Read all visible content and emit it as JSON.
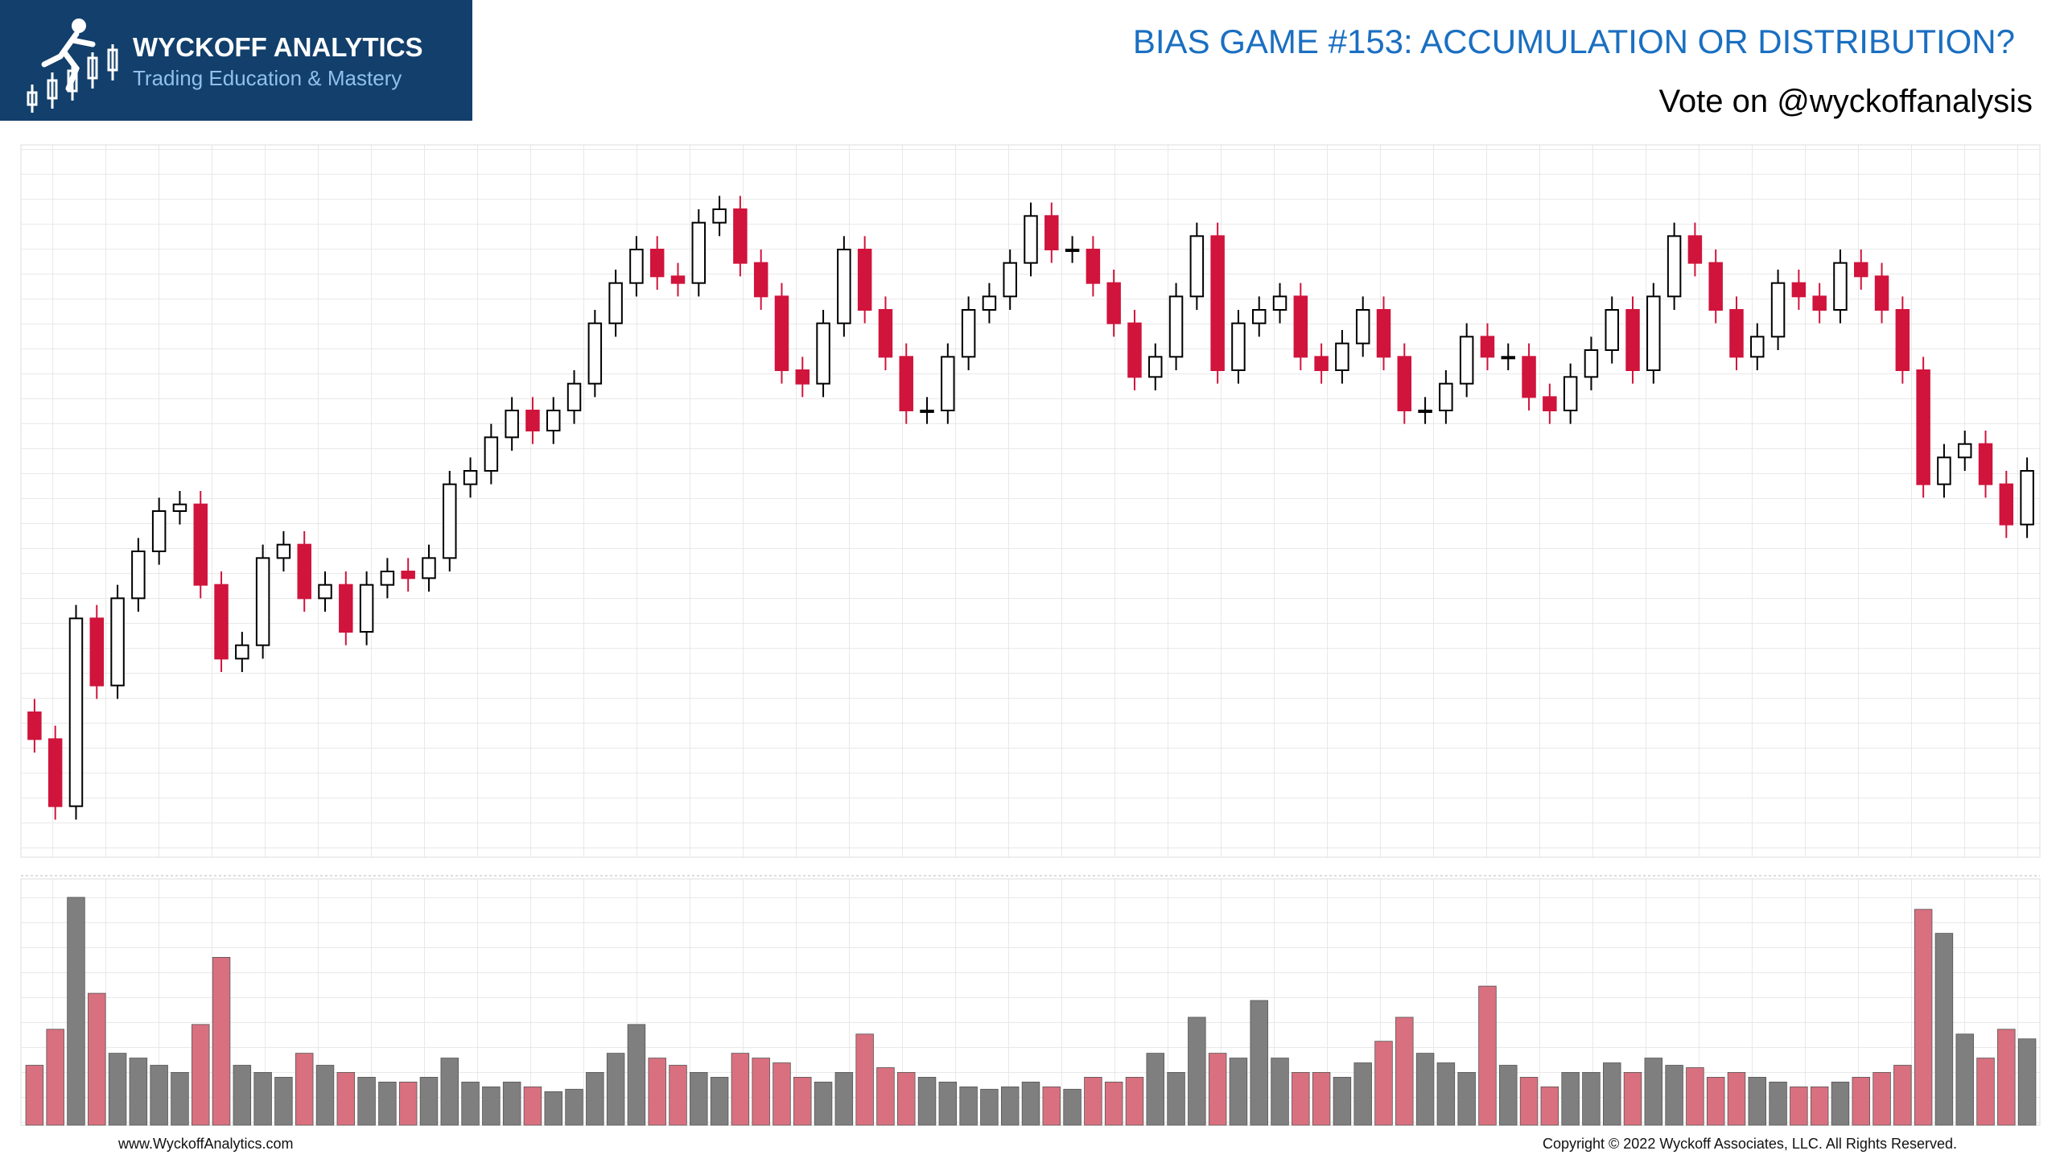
{
  "header": {
    "brand": "WYCKOFF ANALYTICS",
    "tagline": "Trading Education & Mastery",
    "title": "BIAS GAME #153: ACCUMULATION OR DISTRIBUTION?",
    "subtitle": "Vote on @wyckoffanalysis"
  },
  "footer": {
    "left": "www.WyckoffAnalytics.com",
    "right": "Copyright © 2022 Wyckoff Associates, LLC. All Rights Reserved."
  },
  "chart_data": {
    "type": "candlestick",
    "open": [
      16,
      12,
      2,
      30,
      20,
      33,
      40,
      46,
      47,
      35,
      24,
      26,
      39,
      41,
      33,
      35,
      28,
      35,
      37,
      36,
      39,
      50,
      52,
      57,
      61,
      58,
      61,
      65,
      74,
      80,
      85,
      81,
      80,
      89,
      91,
      83,
      78,
      67,
      65,
      74,
      85,
      76,
      69,
      61,
      61,
      69,
      76,
      78,
      83,
      90,
      85,
      85,
      80,
      74,
      66,
      69,
      78,
      87,
      67,
      74,
      76,
      78,
      69,
      67,
      71,
      76,
      69,
      61,
      61,
      65,
      72,
      69,
      69,
      63,
      61,
      66,
      70,
      76,
      67,
      78,
      87,
      83,
      76,
      69,
      72,
      80,
      78,
      76,
      83,
      81,
      76,
      67,
      50,
      54,
      56,
      50,
      44
    ],
    "high": [
      18,
      14,
      32,
      32,
      35,
      42,
      48,
      49,
      49,
      37,
      28,
      41,
      43,
      43,
      37,
      37,
      37,
      39,
      39,
      41,
      52,
      54,
      59,
      63,
      63,
      63,
      67,
      76,
      82,
      87,
      87,
      83,
      91,
      93,
      93,
      85,
      80,
      69,
      76,
      87,
      87,
      78,
      71,
      63,
      71,
      78,
      80,
      85,
      92,
      92,
      87,
      87,
      82,
      76,
      71,
      80,
      89,
      89,
      76,
      78,
      80,
      80,
      71,
      73,
      78,
      78,
      71,
      63,
      67,
      74,
      74,
      71,
      71,
      65,
      68,
      72,
      78,
      78,
      80,
      89,
      89,
      85,
      78,
      74,
      82,
      82,
      80,
      85,
      85,
      83,
      78,
      69,
      56,
      58,
      58,
      52,
      54
    ],
    "low": [
      10,
      0,
      0,
      18,
      18,
      31,
      38,
      44,
      33,
      22,
      22,
      24,
      37,
      31,
      31,
      26,
      26,
      33,
      34,
      34,
      37,
      48,
      50,
      55,
      56,
      56,
      59,
      63,
      72,
      78,
      79,
      78,
      78,
      87,
      81,
      76,
      65,
      63,
      63,
      72,
      74,
      67,
      59,
      59,
      59,
      67,
      74,
      76,
      81,
      83,
      83,
      78,
      72,
      64,
      64,
      67,
      76,
      65,
      65,
      72,
      74,
      67,
      65,
      65,
      69,
      67,
      59,
      59,
      59,
      63,
      67,
      67,
      61,
      59,
      59,
      64,
      68,
      65,
      65,
      76,
      81,
      74,
      67,
      67,
      70,
      76,
      74,
      74,
      79,
      74,
      65,
      48,
      48,
      52,
      48,
      42,
      42
    ],
    "close": [
      12,
      2,
      30,
      20,
      33,
      40,
      46,
      47,
      35,
      24,
      26,
      39,
      41,
      33,
      35,
      28,
      35,
      37,
      36,
      39,
      50,
      52,
      57,
      61,
      58,
      61,
      65,
      74,
      80,
      85,
      81,
      80,
      89,
      91,
      83,
      78,
      67,
      65,
      74,
      85,
      76,
      69,
      61,
      61,
      69,
      76,
      78,
      83,
      90,
      85,
      85,
      80,
      74,
      66,
      69,
      78,
      87,
      67,
      74,
      76,
      78,
      69,
      67,
      71,
      76,
      69,
      61,
      61,
      65,
      72,
      69,
      69,
      63,
      61,
      66,
      70,
      76,
      67,
      78,
      87,
      83,
      76,
      69,
      72,
      80,
      78,
      76,
      83,
      81,
      76,
      67,
      50,
      54,
      56,
      50,
      44,
      52
    ],
    "volume": [
      25,
      40,
      95,
      55,
      30,
      28,
      25,
      22,
      42,
      70,
      25,
      22,
      20,
      30,
      25,
      22,
      20,
      18,
      18,
      20,
      28,
      18,
      16,
      18,
      16,
      14,
      15,
      22,
      30,
      42,
      28,
      25,
      22,
      20,
      30,
      28,
      26,
      20,
      18,
      22,
      38,
      24,
      22,
      20,
      18,
      16,
      15,
      16,
      18,
      16,
      15,
      20,
      18,
      20,
      30,
      22,
      45,
      30,
      28,
      52,
      28,
      22,
      22,
      20,
      26,
      35,
      45,
      30,
      26,
      22,
      58,
      25,
      20,
      16,
      22,
      22,
      26,
      22,
      28,
      25,
      24,
      20,
      22,
      20,
      18,
      16,
      16,
      18,
      20,
      22,
      25,
      90,
      80,
      38,
      28,
      40,
      36
    ],
    "ylim": [
      -5,
      100
    ],
    "volume_ylim": [
      0,
      100
    ],
    "up_color": "#ffffff",
    "down_color": "#d0143c",
    "up_volume_color": "#7f7f7f",
    "down_volume_color": "#d9707f"
  }
}
